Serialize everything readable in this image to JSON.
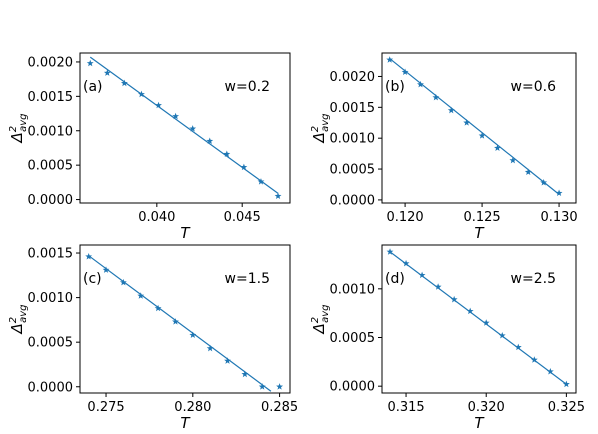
{
  "colors": {
    "series": "#1f77b4",
    "axes": "#000000",
    "background": "#ffffff"
  },
  "marker": "star",
  "chart_data": [
    {
      "type": "scatter",
      "panel": "(a)",
      "annotation": "w=0.2",
      "xlabel": "T",
      "ylabel": "Δ²avg",
      "ylabel_main": "Δ",
      "ylabel_sup": "2",
      "ylabel_sub": "avg",
      "xlim": [
        0.0355,
        0.0478
      ],
      "ylim": [
        -5e-05,
        0.00213
      ],
      "xticks": [
        0.04,
        0.045
      ],
      "xtick_labels": [
        "0.040",
        "0.045"
      ],
      "yticks": [
        0.0,
        0.0005,
        0.001,
        0.0015,
        0.002
      ],
      "ytick_labels": [
        "0.0000",
        "0.0005",
        "0.0010",
        "0.0015",
        "0.0020"
      ],
      "grid": false,
      "series": [
        {
          "x": [
            0.0361,
            0.0371,
            0.0381,
            0.0391,
            0.0401,
            0.0411,
            0.0421,
            0.0431,
            0.0441,
            0.0451,
            0.0461,
            0.0471
          ],
          "y": [
            0.00198,
            0.00184,
            0.00169,
            0.00153,
            0.00137,
            0.00121,
            0.00103,
            0.00085,
            0.00066,
            0.00047,
            0.00026,
            5e-05
          ]
        }
      ],
      "fit_line": {
        "x": [
          0.0361,
          0.0471
        ],
        "y": [
          0.00207,
          9e-05
        ]
      }
    },
    {
      "type": "scatter",
      "panel": "(b)",
      "annotation": "w=0.6",
      "xlabel": "T",
      "ylabel": "Δ²avg",
      "ylabel_main": "Δ",
      "ylabel_sup": "2",
      "ylabel_sub": "avg",
      "xlim": [
        0.1185,
        0.1311
      ],
      "ylim": [
        -5e-05,
        0.00238
      ],
      "xticks": [
        0.12,
        0.125,
        0.13
      ],
      "xtick_labels": [
        "0.120",
        "0.125",
        "0.130"
      ],
      "yticks": [
        0.0,
        0.0005,
        0.001,
        0.0015,
        0.002
      ],
      "ytick_labels": [
        "0.0000",
        "0.0005",
        "0.0010",
        "0.0015",
        "0.0020"
      ],
      "grid": false,
      "series": [
        {
          "x": [
            0.119,
            0.12,
            0.121,
            0.122,
            0.123,
            0.124,
            0.125,
            0.126,
            0.127,
            0.128,
            0.129,
            0.13
          ],
          "y": [
            0.00227,
            0.00207,
            0.00187,
            0.00166,
            0.00145,
            0.00125,
            0.00104,
            0.00084,
            0.00064,
            0.00045,
            0.00028,
            0.00011
          ]
        }
      ],
      "fit_line": {
        "x": [
          0.119,
          0.13
        ],
        "y": [
          0.00229,
          9e-05
        ]
      }
    },
    {
      "type": "scatter",
      "panel": "(c)",
      "annotation": "w=1.5",
      "xlabel": "T",
      "ylabel": "Δ²avg",
      "ylabel_main": "Δ",
      "ylabel_sup": "2",
      "ylabel_sub": "avg",
      "xlim": [
        0.2735,
        0.2856
      ],
      "ylim": [
        -7e-05,
        0.00159
      ],
      "xticks": [
        0.275,
        0.28,
        0.285
      ],
      "xtick_labels": [
        "0.275",
        "0.280",
        "0.285"
      ],
      "yticks": [
        0.0,
        0.0005,
        0.001,
        0.0015
      ],
      "ytick_labels": [
        "0.0000",
        "0.0005",
        "0.0010",
        "0.0015"
      ],
      "grid": false,
      "series": [
        {
          "x": [
            0.274,
            0.275,
            0.276,
            0.277,
            0.278,
            0.279,
            0.28,
            0.281,
            0.282,
            0.283,
            0.284,
            0.285
          ],
          "y": [
            0.00146,
            0.00131,
            0.00117,
            0.00102,
            0.00088,
            0.00073,
            0.00058,
            0.00043,
            0.00029,
            0.00014,
            0.0,
            0.0
          ]
        }
      ],
      "fit_line": {
        "x": [
          0.274,
          0.2845
        ],
        "y": [
          0.00147,
          -5e-05
        ]
      }
    },
    {
      "type": "scatter",
      "panel": "(d)",
      "annotation": "w=2.5",
      "xlabel": "T",
      "ylabel": "Δ²avg",
      "ylabel_main": "Δ",
      "ylabel_sup": "2",
      "ylabel_sub": "avg",
      "xlim": [
        0.3135,
        0.3256
      ],
      "ylim": [
        -7e-05,
        0.00145
      ],
      "xticks": [
        0.315,
        0.32,
        0.325
      ],
      "xtick_labels": [
        "0.315",
        "0.320",
        "0.325"
      ],
      "yticks": [
        0.0,
        0.0005,
        0.001
      ],
      "ytick_labels": [
        "0.0000",
        "0.0005",
        "0.0010"
      ],
      "grid": false,
      "series": [
        {
          "x": [
            0.314,
            0.315,
            0.316,
            0.317,
            0.318,
            0.319,
            0.32,
            0.321,
            0.322,
            0.323,
            0.324,
            0.325
          ],
          "y": [
            0.00138,
            0.00126,
            0.00114,
            0.00102,
            0.00089,
            0.00077,
            0.00065,
            0.00052,
            0.0004,
            0.00027,
            0.00015,
            2e-05
          ]
        }
      ],
      "fit_line": {
        "x": [
          0.314,
          0.325
        ],
        "y": [
          0.00138,
          2e-05
        ]
      }
    }
  ]
}
